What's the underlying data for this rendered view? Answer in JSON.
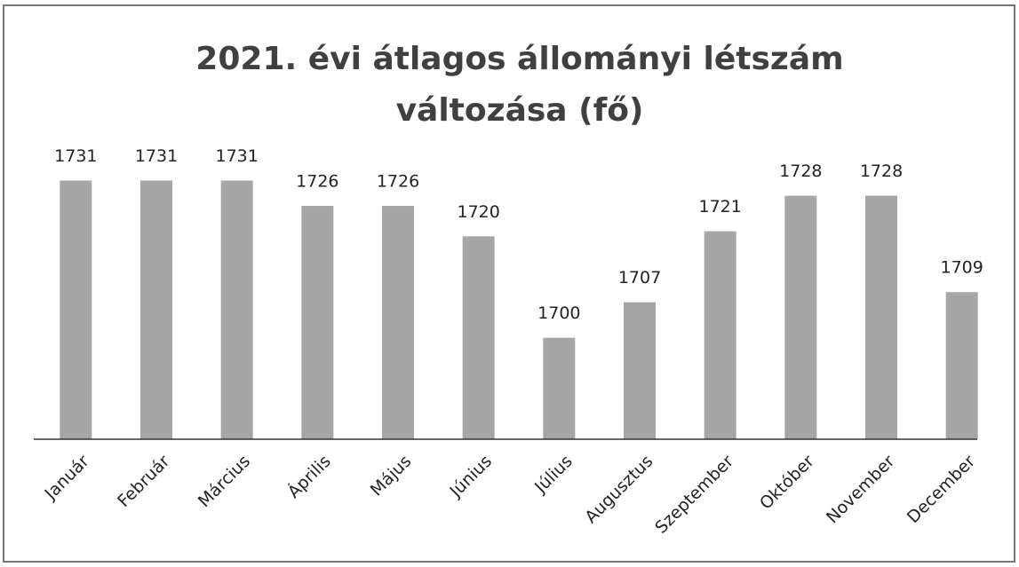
{
  "chart_data": {
    "type": "bar",
    "title": "2021. évi átlagos állományi létszám változása (fő)",
    "categories": [
      "Január",
      "Február",
      "Március",
      "Április",
      "Május",
      "Június",
      "Július",
      "Augusztus",
      "Szeptember",
      "Október",
      "November",
      "December"
    ],
    "values": [
      1731,
      1731,
      1731,
      1726,
      1726,
      1720,
      1700,
      1707,
      1721,
      1728,
      1728,
      1709
    ],
    "color": "#a6a6a6",
    "ylim": [
      1680,
      1740
    ]
  }
}
